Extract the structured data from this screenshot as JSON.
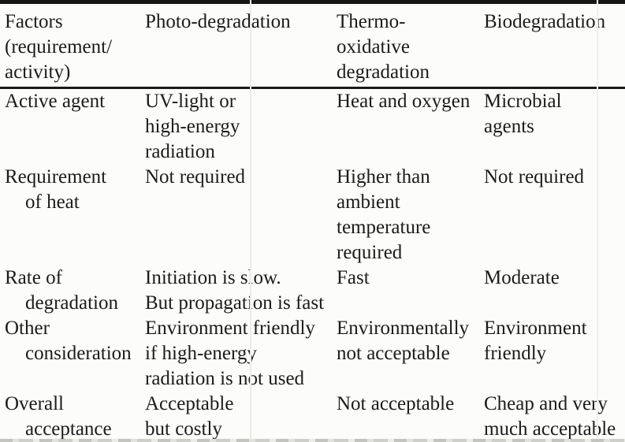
{
  "table": {
    "header": {
      "columns": [
        "Factors\n(requirement/\nactivity)",
        "Photo-degradation",
        "Thermo-\noxidative\ndegradation",
        "Biodegradation"
      ]
    },
    "rows": [
      {
        "factor": "Active agent",
        "photo": "UV-light or\nhigh-energy\nradiation",
        "thermo": "Heat and oxygen",
        "bio": "Microbial\nagents"
      },
      {
        "factor": "Requirement\nof heat",
        "photo": "Not required",
        "thermo": "Higher than\nambient\ntemperature\nrequired",
        "bio": "Not required"
      },
      {
        "factor": "Rate of\ndegradation",
        "photo": "Initiation is slow.\nBut propagation is fast",
        "thermo": "Fast",
        "bio": "Moderate"
      },
      {
        "factor": "Other\nconsideration",
        "photo": "Environment friendly\nif high-energy\nradiation is not used",
        "thermo": "Environmentally\nnot acceptable",
        "bio": "Environment\nfriendly"
      },
      {
        "factor": "Overall\nacceptance",
        "photo": "Acceptable\nbut costly",
        "thermo": "Not acceptable",
        "bio": "Cheap and very\nmuch acceptable"
      }
    ],
    "colors": {
      "ink": "#1b1b1b",
      "rule": "#161616",
      "background": "#fcfcfa",
      "scan_artifact": "#e9eee4"
    }
  }
}
